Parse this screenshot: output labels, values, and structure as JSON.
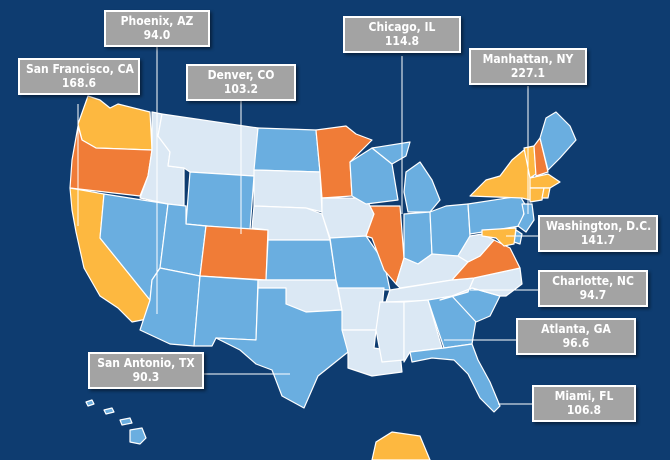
{
  "colors": {
    "background": "#0e3c70",
    "tier_orange": "#f07c37",
    "tier_yellow": "#fdb840",
    "tier_blue": "#6aaee0",
    "tier_light": "#dbe8f4",
    "label_box": "#a3a3a3"
  },
  "cities": [
    {
      "id": "phoenix",
      "name": "Phoenix, AZ",
      "value": "94.0"
    },
    {
      "id": "chicago",
      "name": "Chicago, IL",
      "value": "114.8"
    },
    {
      "id": "san-francisco",
      "name": "San Francisco, CA",
      "value": "168.6"
    },
    {
      "id": "denver",
      "name": "Denver, CO",
      "value": "103.2"
    },
    {
      "id": "manhattan",
      "name": "Manhattan, NY",
      "value": "227.1"
    },
    {
      "id": "washington",
      "name": "Washington, D.C.",
      "value": "141.7"
    },
    {
      "id": "charlotte",
      "name": "Charlotte, NC",
      "value": "94.7"
    },
    {
      "id": "atlanta",
      "name": "Atlanta, GA",
      "value": "96.6"
    },
    {
      "id": "san-antonio",
      "name": "San Antonio, TX",
      "value": "90.3"
    },
    {
      "id": "miami",
      "name": "Miami, FL",
      "value": "106.8"
    }
  ],
  "states": {
    "orange": [
      "Oregon",
      "Colorado",
      "Minnesota",
      "Illinois",
      "Virginia",
      "New Hampshire"
    ],
    "yellow": [
      "Washington",
      "California",
      "New York",
      "Massachusetts",
      "Vermont",
      "Connecticut",
      "Rhode Island",
      "Maryland",
      "Alaska"
    ],
    "blue": [
      "Nevada",
      "Utah",
      "Arizona",
      "New Mexico",
      "Wyoming",
      "Texas",
      "Kansas",
      "Missouri",
      "North Dakota",
      "Wisconsin",
      "Michigan",
      "Indiana",
      "Ohio",
      "Pennsylvania",
      "New Jersey",
      "Delaware",
      "Georgia",
      "Florida",
      "South Carolina",
      "Maine",
      "Hawaii"
    ],
    "light": [
      "Montana",
      "Idaho",
      "South Dakota",
      "Nebraska",
      "Iowa",
      "Oklahoma",
      "Arkansas",
      "Louisiana",
      "Mississippi",
      "Alabama",
      "Tennessee",
      "Kentucky",
      "West Virginia",
      "North Carolina"
    ]
  }
}
